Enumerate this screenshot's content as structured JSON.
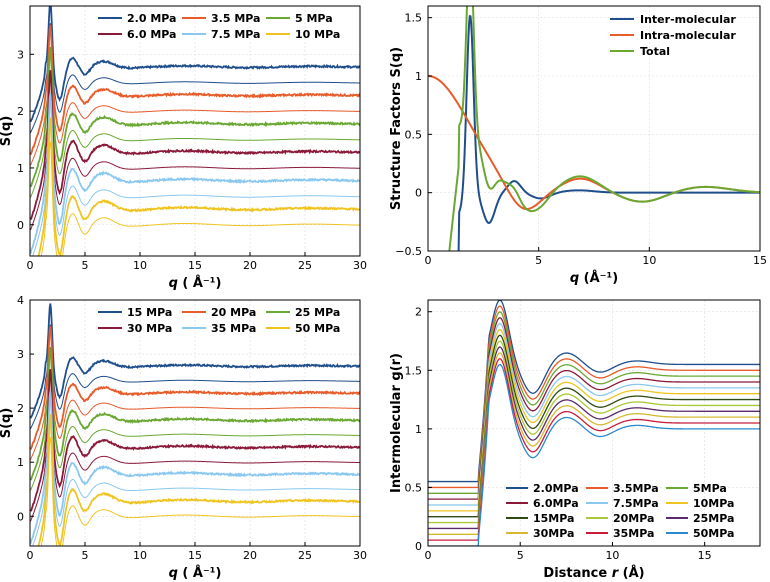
{
  "chart_data": [
    {
      "type": "line",
      "id": "a",
      "title": "",
      "xlabel_prefix": "q",
      "xlabel_suffix": " ( Å⁻¹)",
      "ylabel": "S(q)",
      "xlim": [
        0,
        30
      ],
      "ylim": [
        -0.55,
        3.85
      ],
      "xticks": [
        0,
        5,
        10,
        15,
        20,
        25,
        30
      ],
      "yticks": [
        0,
        1,
        2,
        3
      ],
      "legend_position": "top-right",
      "legend_columns": 3,
      "series": [
        {
          "name": "2.0 MPa",
          "color": "#1f4e8c",
          "offset": 2.5
        },
        {
          "name": "3.5 MPa",
          "color": "#e85b2a",
          "offset": 2.0
        },
        {
          "name": "5 MPa",
          "color": "#6aa832",
          "offset": 1.5
        },
        {
          "name": "6.0 MPa",
          "color": "#8b1a3a",
          "offset": 1.0
        },
        {
          "name": "7.5 MPa",
          "color": "#8ac8ef",
          "offset": 0.5
        },
        {
          "name": "10 MPa",
          "color": "#f0c420",
          "offset": 0.0
        }
      ]
    },
    {
      "type": "line",
      "id": "b",
      "title": "",
      "xlabel_prefix": "q",
      "xlabel_suffix": " (Å⁻¹)",
      "ylabel": "Structure Factors S(q)",
      "xlim": [
        0,
        15
      ],
      "ylim": [
        -0.5,
        1.6
      ],
      "xticks": [
        0,
        5,
        10,
        15
      ],
      "yticks": [
        -0.5,
        0,
        0.5,
        1,
        1.5
      ],
      "ytick_labels": [
        "−0.5",
        "0",
        "0.5",
        "1",
        "1.5"
      ],
      "legend_position": "top-right",
      "series": [
        {
          "name": "Inter-molecular",
          "color": "#1f4e8c"
        },
        {
          "name": "Intra-molecular",
          "color": "#e85b2a"
        },
        {
          "name": "Total",
          "color": "#6aa832"
        }
      ]
    },
    {
      "type": "line",
      "id": "c",
      "title": "",
      "xlabel_prefix": "q",
      "xlabel_suffix": " ( Å⁻¹)",
      "ylabel": "S(q)",
      "xlim": [
        0,
        30
      ],
      "ylim": [
        -0.55,
        4.0
      ],
      "xticks": [
        0,
        5,
        10,
        15,
        20,
        25,
        30
      ],
      "yticks": [
        0,
        1,
        2,
        3,
        4
      ],
      "legend_position": "top-right",
      "legend_columns": 3,
      "series": [
        {
          "name": "15 MPa",
          "color": "#1f4e8c",
          "offset": 2.5
        },
        {
          "name": "20 MPa",
          "color": "#e85b2a",
          "offset": 2.0
        },
        {
          "name": "25 MPa",
          "color": "#6aa832",
          "offset": 1.5
        },
        {
          "name": "30 MPa",
          "color": "#8b1a3a",
          "offset": 1.0
        },
        {
          "name": "35 MPa",
          "color": "#8ac8ef",
          "offset": 0.5
        },
        {
          "name": "50 MPa",
          "color": "#f0c420",
          "offset": 0.0
        }
      ]
    },
    {
      "type": "line",
      "id": "d",
      "title": "",
      "xlabel_prefix": "Distance ",
      "xlabel_var": "r",
      "xlabel_suffix": " (Å)",
      "ylabel": "Intermolecular g(r)",
      "xlim": [
        0,
        18
      ],
      "ylim": [
        0,
        2.1
      ],
      "xticks": [
        0,
        5,
        10,
        15
      ],
      "yticks": [
        0,
        0.5,
        1,
        1.5,
        2
      ],
      "legend_position": "bottom-right",
      "legend_columns": 3,
      "series": [
        {
          "name": "2.0MPa",
          "color": "#1f4e8c",
          "offset": 0.55
        },
        {
          "name": "3.5MPa",
          "color": "#e85b2a",
          "offset": 0.5
        },
        {
          "name": "5MPa",
          "color": "#6aa832",
          "offset": 0.45
        },
        {
          "name": "6.0MPa",
          "color": "#8b1a3a",
          "offset": 0.4
        },
        {
          "name": "7.5MPa",
          "color": "#8ac8ef",
          "offset": 0.35
        },
        {
          "name": "10MPa",
          "color": "#f0c420",
          "offset": 0.3
        },
        {
          "name": "15MPa",
          "color": "#2e4a14",
          "offset": 0.25
        },
        {
          "name": "20MPa",
          "color": "#a8c838",
          "offset": 0.2
        },
        {
          "name": "25MPa",
          "color": "#5a2a6a",
          "offset": 0.15
        },
        {
          "name": "30MPa",
          "color": "#d8b830",
          "offset": 0.1
        },
        {
          "name": "35MPa",
          "color": "#c81e3c",
          "offset": 0.05
        },
        {
          "name": "50MPa",
          "color": "#2a8ad0",
          "offset": 0.0
        }
      ]
    }
  ]
}
